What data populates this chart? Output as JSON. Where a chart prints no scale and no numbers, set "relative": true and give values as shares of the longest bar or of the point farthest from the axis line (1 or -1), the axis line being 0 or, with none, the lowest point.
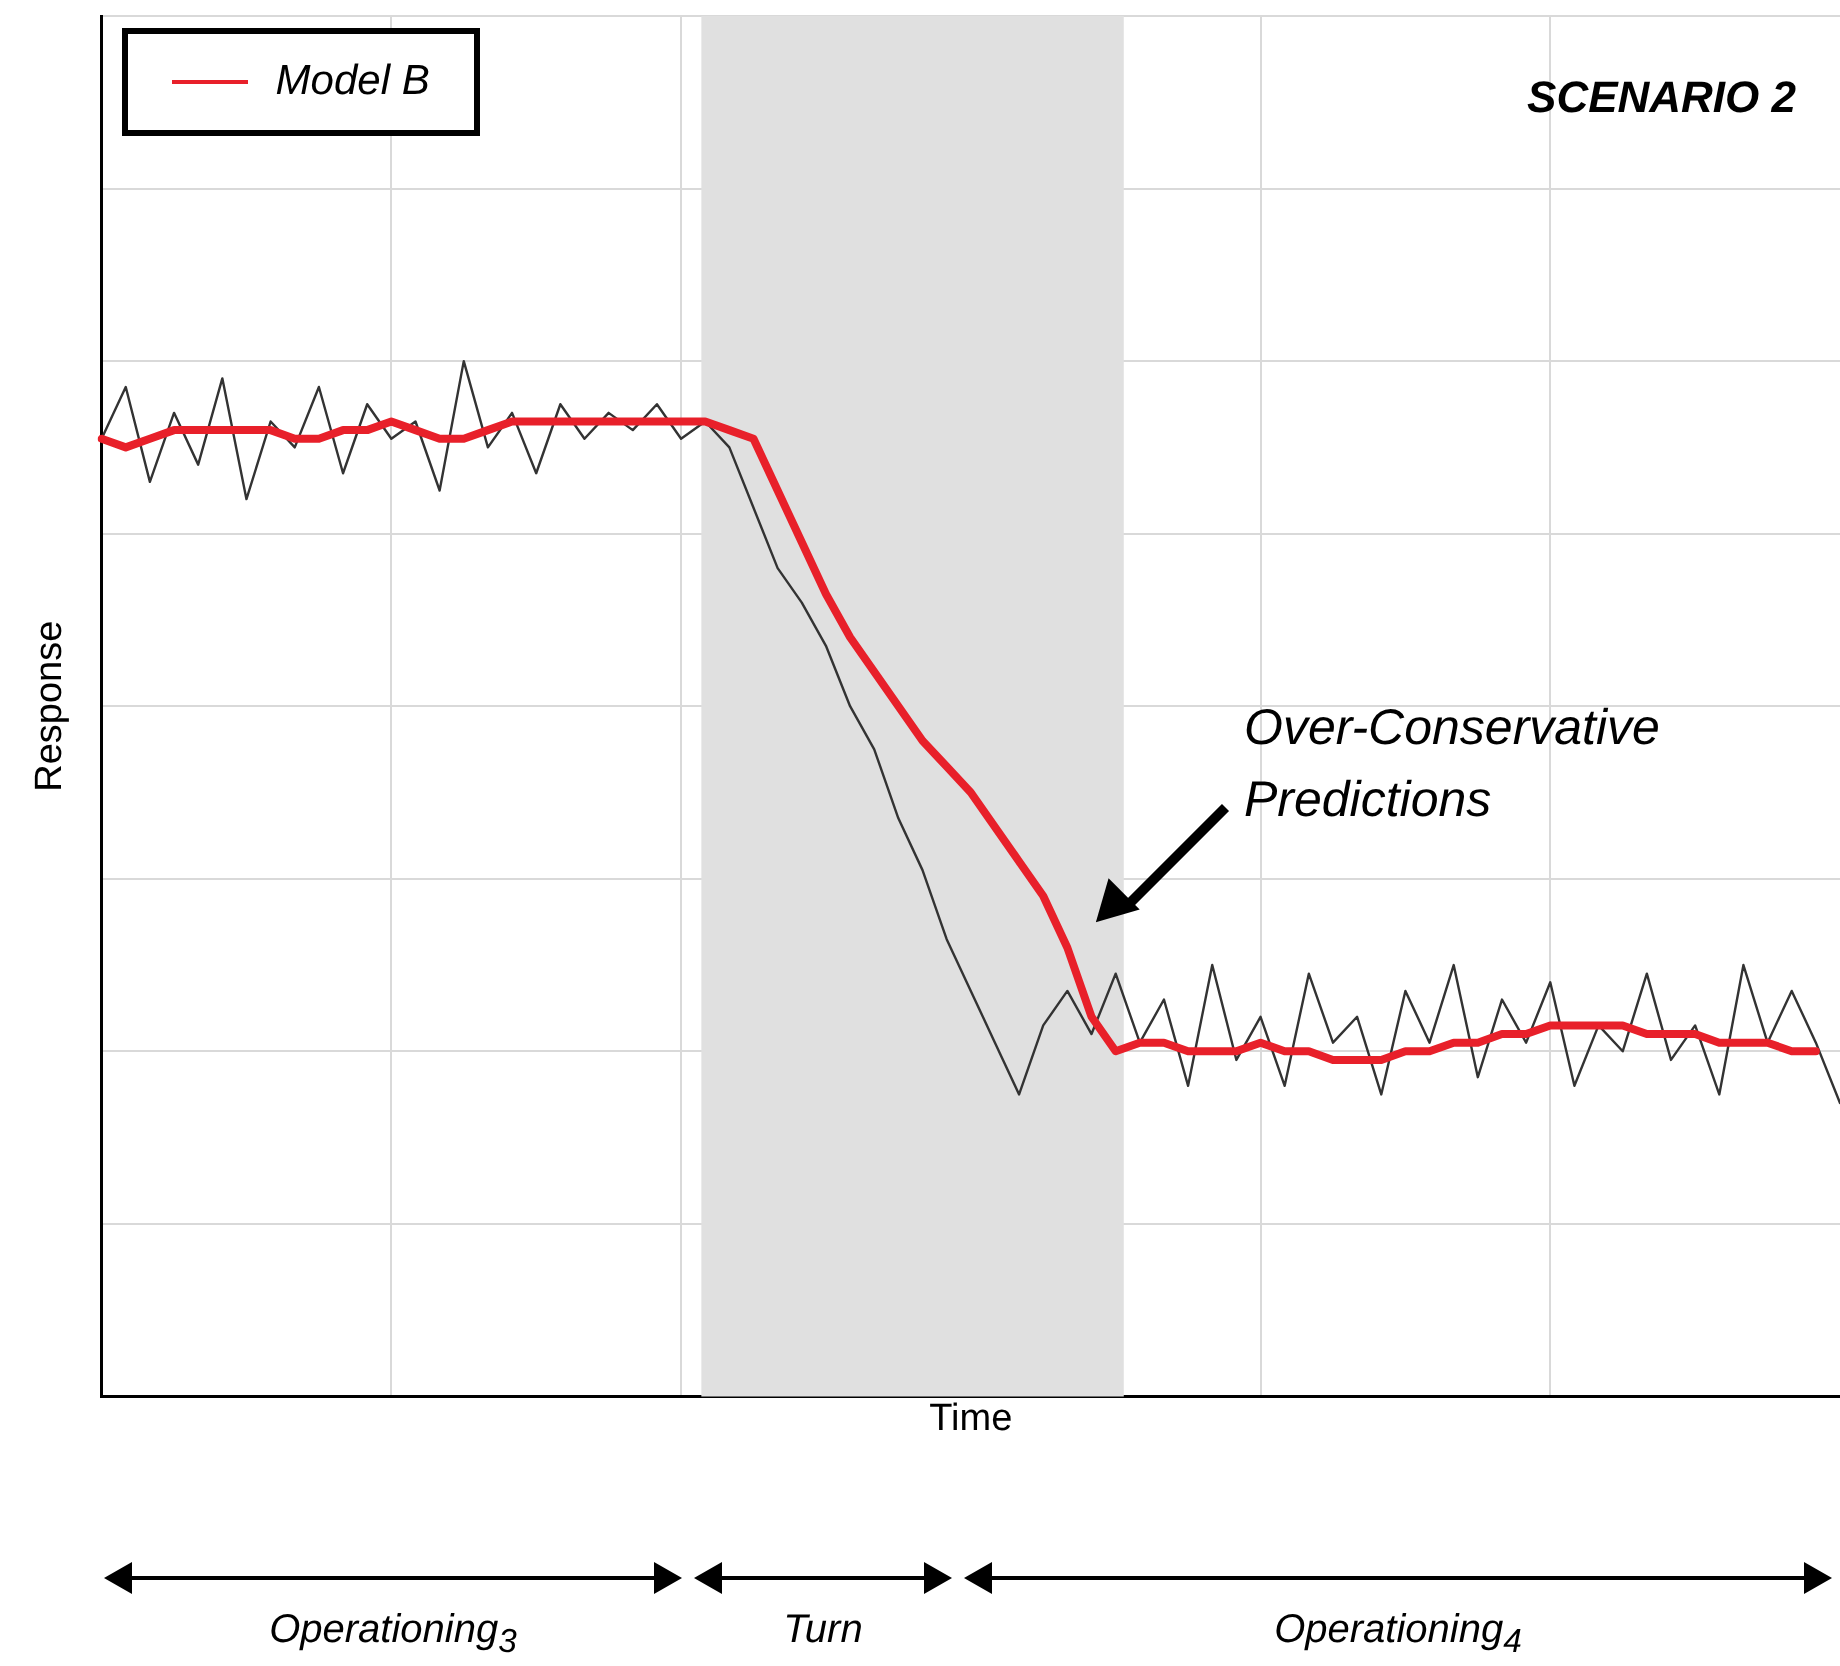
{
  "chart_data": {
    "type": "line",
    "title": "SCENARIO 2",
    "xlabel": "Time",
    "ylabel": "Response",
    "relative": true,
    "marker": "none",
    "grid": true,
    "legend": "top left",
    "categories": [
      null,
      null,
      null,
      null,
      null,
      null,
      null,
      null,
      null,
      null,
      null,
      null,
      null,
      null,
      null,
      null,
      null,
      null,
      null,
      null,
      null,
      null,
      null,
      null,
      null,
      null,
      null,
      null,
      null,
      null,
      null,
      null,
      null,
      null,
      null,
      null,
      null,
      null,
      null,
      null,
      null,
      null,
      null,
      null,
      null,
      null,
      null,
      null,
      null,
      null,
      null,
      null,
      null,
      null,
      null,
      null,
      null,
      null,
      null,
      null,
      null,
      null,
      null,
      null,
      null,
      null,
      null,
      null,
      null,
      null,
      null,
      null,
      null
    ],
    "series": [
      {
        "color": "#333333",
        "values": [
          0.91,
          0.97,
          0.86,
          0.94,
          0.88,
          0.98,
          0.84,
          0.93,
          0.9,
          0.97,
          0.87,
          0.95,
          0.91,
          0.93,
          0.85,
          1,
          0.9,
          0.94,
          0.87,
          0.95,
          0.91,
          0.94,
          0.92,
          0.95,
          0.91,
          0.93,
          0.9,
          0.83,
          0.76,
          0.72,
          0.67,
          0.6,
          0.55,
          0.47,
          0.41,
          0.33,
          0.27,
          0.21,
          0.15,
          0.23,
          0.27,
          0.22,
          0.29,
          0.21,
          0.26,
          0.16,
          0.3,
          0.19,
          0.24,
          0.16,
          0.29,
          0.21,
          0.24,
          0.15,
          0.27,
          0.21,
          0.3,
          0.17,
          0.26,
          0.21,
          0.28,
          0.16,
          0.23,
          0.2,
          0.29,
          0.19,
          0.23,
          0.15,
          0.3,
          0.21,
          0.27,
          0.21,
          0.14
        ]
      },
      {
        "name": "Model B",
        "color": "#e8202a",
        "values": [
          0.91,
          0.9,
          0.91,
          0.92,
          0.92,
          0.92,
          0.92,
          0.92,
          0.91,
          0.91,
          0.92,
          0.92,
          0.93,
          0.92,
          0.91,
          0.91,
          0.92,
          0.93,
          0.93,
          0.93,
          0.93,
          0.93,
          0.93,
          0.93,
          0.93,
          0.93,
          0.92,
          0.91,
          0.85,
          0.79,
          0.73,
          0.68,
          0.64,
          0.6,
          0.56,
          0.53,
          0.5,
          0.46,
          0.42,
          0.38,
          0.32,
          0.24,
          0.2,
          0.21,
          0.21,
          0.2,
          0.2,
          0.2,
          0.21,
          0.2,
          0.2,
          0.19,
          0.19,
          0.19,
          0.2,
          0.2,
          0.21,
          0.21,
          0.22,
          0.22,
          0.23,
          0.23,
          0.23,
          0.23,
          0.22,
          0.22,
          0.22,
          0.21,
          0.21,
          0.21,
          0.2,
          0.2,
          null
        ]
      }
    ],
    "annotations": [
      "Over-Conservative Predictions",
      "Operationing$_{3}$",
      "Turn",
      "Operationing$_{4}$"
    ]
  }
}
